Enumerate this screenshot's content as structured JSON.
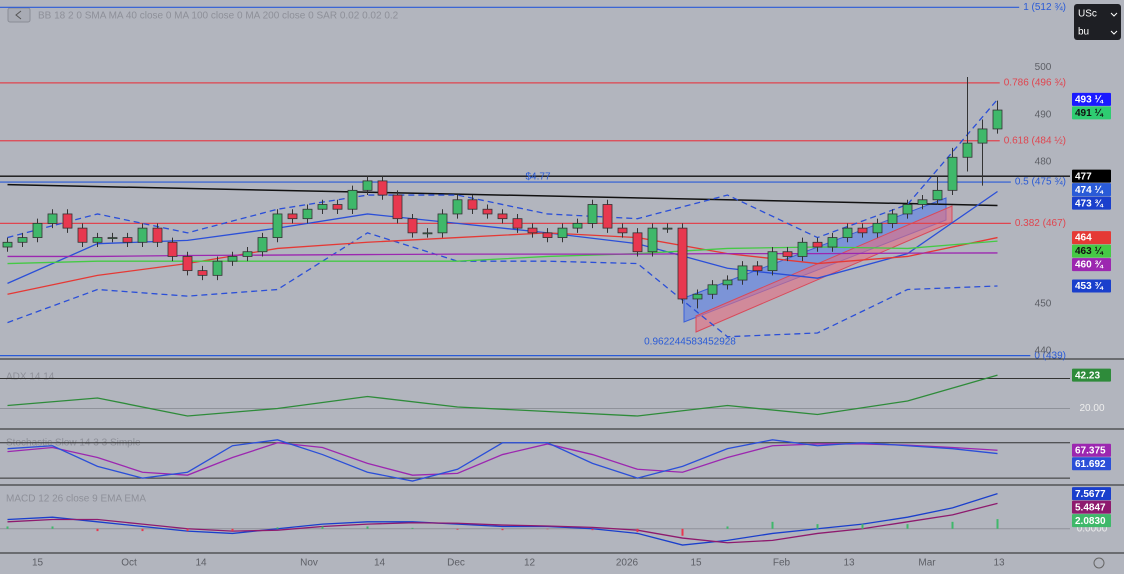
{
  "toolbar": {
    "currency": "USc",
    "unit": "bu"
  },
  "chart_data": [
    {
      "type": "candlestick",
      "title": "BB 18 2 0 SMA   MA 40 close 0   MA 100 close 0   MA 200 close 0   SAR 0.02 0.02 0.2",
      "up_color": "#3fb86a",
      "down_color": "#e8384f",
      "open": [
        462,
        463,
        464,
        467,
        469,
        466,
        463,
        464,
        464,
        463,
        466,
        463,
        460,
        457,
        456,
        459,
        460,
        461,
        464,
        469,
        468,
        470,
        471,
        470,
        474,
        476,
        473,
        468,
        465,
        465,
        469,
        472,
        470,
        469,
        468,
        466,
        465,
        464,
        466,
        467,
        471,
        466,
        465,
        461,
        466,
        466,
        451,
        452,
        454,
        455,
        458,
        457,
        461,
        460,
        463,
        462,
        464,
        466,
        465,
        467,
        469,
        471,
        472,
        474,
        481,
        484,
        487
      ],
      "high": [
        464,
        465,
        468,
        470,
        470,
        467,
        465,
        465,
        465,
        467,
        467,
        464,
        461,
        458,
        460,
        461,
        462,
        465,
        470,
        470,
        471,
        472,
        472,
        475,
        477,
        477,
        474,
        469,
        466,
        470,
        473,
        473,
        471,
        470,
        469,
        467,
        466,
        467,
        468,
        472,
        472,
        467,
        466,
        467,
        467,
        467,
        453,
        455,
        456,
        459,
        459,
        462,
        462,
        464,
        464,
        465,
        467,
        467,
        468,
        470,
        472,
        473,
        477,
        483,
        498,
        489,
        493
      ],
      "low": [
        461,
        462,
        463,
        466,
        465,
        462,
        462,
        463,
        462,
        462,
        462,
        459,
        456,
        455,
        455,
        458,
        459,
        460,
        463,
        467,
        467,
        469,
        469,
        469,
        473,
        472,
        467,
        464,
        464,
        464,
        468,
        469,
        468,
        467,
        465,
        464,
        463,
        463,
        465,
        466,
        465,
        464,
        460,
        460,
        465,
        450,
        449,
        451,
        453,
        454,
        456,
        456,
        459,
        459,
        461,
        461,
        463,
        464,
        464,
        466,
        468,
        470,
        471,
        473,
        478,
        475,
        486
      ],
      "close": [
        463,
        464,
        467,
        469,
        466,
        463,
        464,
        464,
        463,
        466,
        463,
        460,
        457,
        456,
        459,
        460,
        461,
        464,
        469,
        468,
        470,
        471,
        470,
        474,
        476,
        473,
        468,
        465,
        465,
        469,
        472,
        470,
        469,
        468,
        466,
        465,
        464,
        466,
        467,
        471,
        466,
        465,
        461,
        466,
        466,
        451,
        452,
        454,
        455,
        458,
        457,
        461,
        460,
        463,
        462,
        464,
        466,
        465,
        467,
        469,
        471,
        472,
        474,
        481,
        484,
        487,
        491
      ],
      "xlim": [
        -0.5,
        67.5
      ],
      "ylim": [
        438.5,
        514.3
      ],
      "yticks": [
        440,
        450,
        480,
        490,
        500
      ],
      "overlays": {
        "x": [
          0,
          6,
          12,
          18,
          24,
          30,
          36,
          42,
          48,
          54,
          60,
          66
        ],
        "series": [
          {
            "color": "#2b4fd8",
            "dashed": true,
            "values": [
              464,
              469,
              465,
              470,
              473,
              473,
              469,
              468,
              473,
              464,
              471,
              493.25
            ]
          },
          {
            "color": "#2b4fd8",
            "dashed": false,
            "values": [
              454.3,
              462.7,
              463.4,
              466,
              469,
              467,
              465,
              462.7,
              457.5,
              455.4,
              460.6,
              473.75
            ]
          },
          {
            "color": "#2b4fd8",
            "dashed": true,
            "values": [
              446,
              453,
              451.6,
              453,
              465,
              459,
              459,
              458.5,
              443,
              443.8,
              453,
              453.75
            ]
          },
          {
            "color": "#e53935",
            "dashed": false,
            "values": [
              452,
              456,
              458.5,
              461.7,
              463,
              464,
              465,
              464,
              460.6,
              458.5,
              460,
              464
            ]
          },
          {
            "color": "#45c945",
            "dashed": false,
            "values": [
              458.5,
              459,
              459,
              459,
              459,
              459,
              460,
              460.6,
              461.7,
              462,
              461.7,
              463.25
            ]
          },
          {
            "color": "#9c27b0",
            "dashed": false,
            "values": [
              460,
              460,
              460.2,
              460.3,
              460.4,
              460.5,
              460.5,
              460.5,
              460.6,
              460.6,
              460.7,
              460.75
            ]
          }
        ]
      },
      "trendline": {
        "x": [
          0,
          66
        ],
        "values": [
          475.2,
          470.8
        ],
        "color": "#111111"
      },
      "fib_levels": [
        {
          "value": 512.75,
          "label": "1 (512 ¾)",
          "color": "#2a5bd7"
        },
        {
          "value": 496.75,
          "label": "0.786 (496 ¾)",
          "color": "#e0454f"
        },
        {
          "value": 484.5,
          "label": "0.618 (484 ½)",
          "color": "#e0454f"
        },
        {
          "value": 475.75,
          "label": "0.5 (475 ¾)",
          "color": "#2a5bd7"
        },
        {
          "value": 467,
          "label": "0.382 (467)",
          "color": "#e0454f"
        },
        {
          "value": 439,
          "label": "0 (439)",
          "color": "#2a5bd7"
        }
      ],
      "hlines": [
        {
          "value": 477,
          "color": "#111111"
        }
      ],
      "annotations": [
        "$4.77",
        "0.962244583452928"
      ],
      "price_labels": [
        {
          "value": 493.25,
          "label": "493 ¼",
          "color": "#1a1aff",
          "text_color": "#ffffff"
        },
        {
          "value": 491.25,
          "label": "491 ¼",
          "color": "#2ecc71",
          "text_color": "#111111"
        },
        {
          "value": 477,
          "label": "477",
          "color": "#000000",
          "text_color": "#ffffff"
        },
        {
          "value": 474.25,
          "label": "474 ¼",
          "color": "#2a5bd7",
          "text_color": "#ffffff"
        },
        {
          "value": 473.75,
          "label": "473 ¾",
          "color": "#1a3fcc",
          "text_color": "#ffffff"
        },
        {
          "value": 464,
          "label": "464",
          "color": "#e53935",
          "text_color": "#ffffff"
        },
        {
          "value": 463.25,
          "label": "463 ¼",
          "color": "#45c945",
          "text_color": "#111111"
        },
        {
          "value": 460.75,
          "label": "460 ¾",
          "color": "#9c27b0",
          "text_color": "#ffffff"
        },
        {
          "value": 453.75,
          "label": "453 ¾",
          "color": "#1a3fcc",
          "text_color": "#ffffff"
        }
      ]
    },
    {
      "type": "line",
      "title": "ADX 14 14",
      "xlim": [
        -0.5,
        67.5
      ],
      "ylim": [
        7,
        49
      ],
      "yticks": [
        {
          "value": 20,
          "label": "20.00"
        }
      ],
      "hlines": [
        40
      ],
      "x": [
        0,
        6,
        12,
        18,
        24,
        30,
        36,
        42,
        48,
        54,
        60,
        66
      ],
      "series": [
        {
          "color": "#2e8b3a",
          "values": [
            22,
            27,
            15,
            20,
            28,
            21,
            18,
            15,
            22,
            16,
            25,
            42.23
          ],
          "last_label": 42.23
        }
      ]
    },
    {
      "type": "line",
      "title": "Stochastic Slow 14 3 3 Simple",
      "xlim": [
        -0.5,
        67.5
      ],
      "ylim": [
        10,
        100
      ],
      "hlines": [
        20,
        80
      ],
      "x": [
        0,
        3,
        6,
        9,
        12,
        15,
        18,
        21,
        24,
        27,
        30,
        33,
        36,
        39,
        42,
        45,
        48,
        51,
        54,
        57,
        60,
        63,
        66
      ],
      "series": [
        {
          "color": "#9c27b0",
          "values": [
            65,
            72,
            55,
            30,
            25,
            55,
            80,
            72,
            45,
            25,
            28,
            60,
            78,
            60,
            35,
            30,
            55,
            75,
            78,
            78,
            76,
            72,
            67.375
          ],
          "last_label": 67.375
        },
        {
          "color": "#2b4fd8",
          "values": [
            70,
            75,
            40,
            20,
            30,
            75,
            85,
            60,
            30,
            15,
            35,
            80,
            80,
            45,
            20,
            40,
            70,
            85,
            75,
            80,
            75,
            70,
            61.692
          ],
          "last_label": 61.692
        }
      ]
    },
    {
      "type": "macd",
      "title": "MACD 12 26 close 9 EMA EMA",
      "xlim": [
        -0.5,
        67.5
      ],
      "ylim": [
        -5,
        9
      ],
      "yticks": [
        {
          "value": 0,
          "label": "0.0000"
        }
      ],
      "x": [
        0,
        3,
        6,
        9,
        12,
        15,
        18,
        21,
        24,
        27,
        30,
        33,
        36,
        39,
        42,
        45,
        48,
        51,
        54,
        57,
        60,
        63,
        66
      ],
      "series": [
        {
          "color": "#1a3fcc",
          "values": [
            2,
            2.5,
            1.5,
            0.5,
            -0.5,
            -1,
            0,
            1,
            1.5,
            1.5,
            1,
            0.5,
            0.5,
            0,
            -1,
            -3.5,
            -2.5,
            -1,
            0,
            1,
            2.5,
            4.5,
            7.5677
          ],
          "last_label": 7.5677
        },
        {
          "color": "#8e1a6e",
          "values": [
            1.5,
            2,
            2,
            1,
            0,
            -0.5,
            -0.3,
            0.5,
            1,
            1.3,
            1.2,
            0.8,
            0.6,
            0.3,
            -0.3,
            -2,
            -3,
            -2.5,
            -1,
            0,
            1.5,
            3,
            5.4847
          ],
          "last_label": 5.4847
        },
        {
          "type": "histogram",
          "color": "#3fb86a",
          "negative_color": "#e8384f",
          "values": [
            0.5,
            0.5,
            -0.5,
            -0.5,
            -0.5,
            -0.5,
            0.3,
            0.5,
            0.5,
            0.2,
            -0.2,
            -0.3,
            -0.1,
            -0.3,
            -0.7,
            -1.5,
            0.5,
            1.5,
            1,
            1,
            1,
            1.5,
            2.083
          ],
          "last_label": {
            "value": 2.083,
            "label": "2.0830"
          }
        }
      ],
      "xticks": [
        {
          "value": 2,
          "label": "15"
        },
        {
          "value": 8.1,
          "label": "Oct"
        },
        {
          "value": 12.9,
          "label": "14"
        },
        {
          "value": 20.1,
          "label": "Nov"
        },
        {
          "value": 24.8,
          "label": "14"
        },
        {
          "value": 29.9,
          "label": "Dec"
        },
        {
          "value": 34.8,
          "label": "12"
        },
        {
          "value": 41.3,
          "label": "2026"
        },
        {
          "value": 45.9,
          "label": "15"
        },
        {
          "value": 51.6,
          "label": "Feb"
        },
        {
          "value": 56.1,
          "label": "13"
        },
        {
          "value": 61.3,
          "label": "Mar"
        },
        {
          "value": 66.1,
          "label": "13"
        }
      ]
    }
  ]
}
